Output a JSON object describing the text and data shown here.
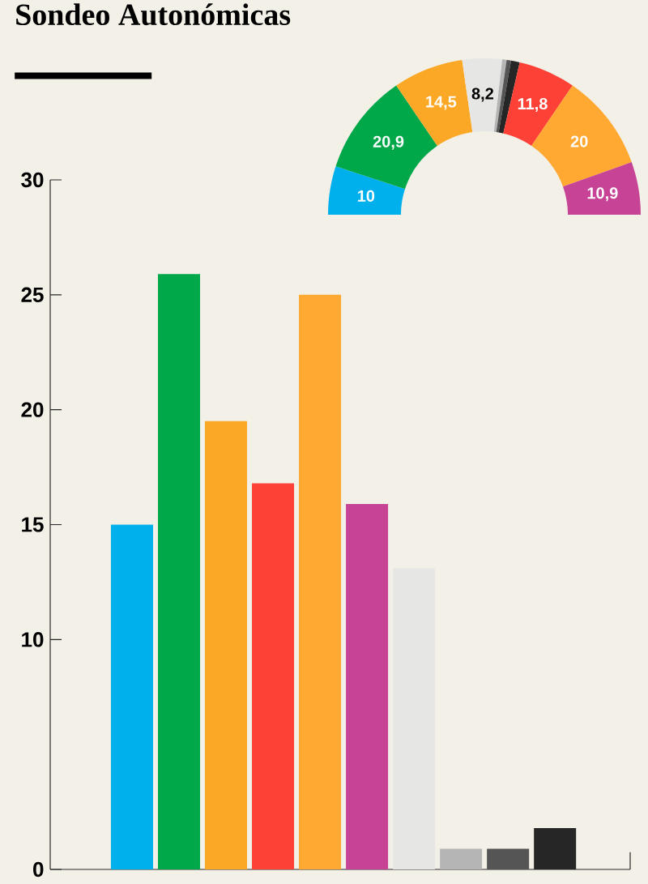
{
  "chart_data": [
    {
      "type": "bar",
      "title": "Sondeo Autonómicas",
      "categories": [
        null,
        null,
        null,
        null,
        null,
        null,
        null,
        null,
        null,
        null
      ],
      "values": [
        15,
        25.9,
        19.5,
        16.8,
        25,
        15.9,
        13.1,
        0.9,
        0.9,
        1.8
      ],
      "colors": [
        "#00b0ec",
        "#00a84a",
        "#fba826",
        "#fe4136",
        "#ffa832",
        "#c64396",
        "#e6e6e4",
        "#b5b5b5",
        "#555555",
        "#262626"
      ],
      "ylim": [
        0,
        30
      ],
      "yticks": [
        0,
        10,
        15,
        20,
        25,
        30
      ],
      "grid": false
    },
    {
      "type": "donut",
      "categories": [
        null,
        null,
        null,
        null,
        null,
        null,
        null,
        null,
        null,
        null
      ],
      "values": [
        10,
        20.9,
        14.5,
        8.2,
        0.9,
        0.9,
        1.8,
        11.8,
        20,
        10.9
      ],
      "colors": [
        "#00b0ec",
        "#00a84a",
        "#fba826",
        "#e6e6e4",
        "#b5b5b5",
        "#555555",
        "#262626",
        "#fe4136",
        "#ffa832",
        "#c64396"
      ],
      "value_labels": [
        "10",
        "20,9",
        "14,5",
        "8,2",
        null,
        null,
        null,
        "11,8",
        "20",
        "10,9"
      ]
    }
  ]
}
